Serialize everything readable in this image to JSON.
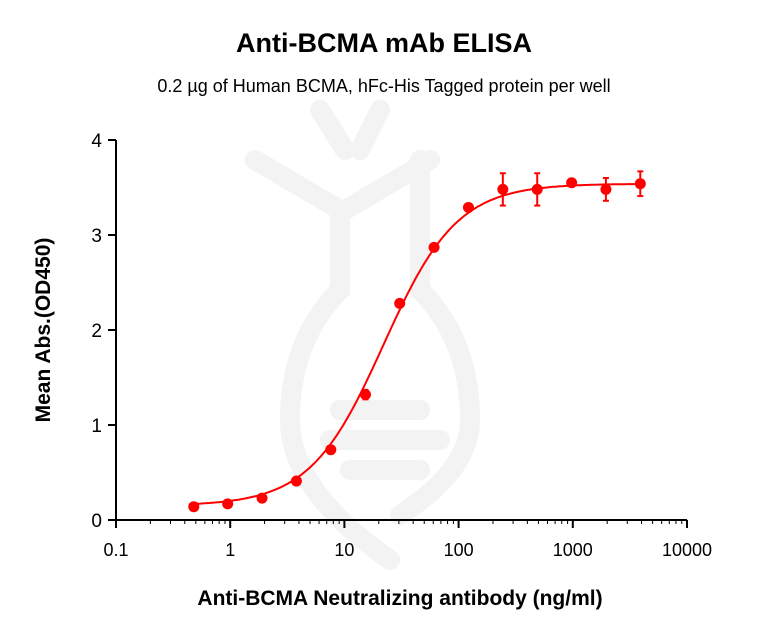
{
  "chart_data": {
    "type": "scatter",
    "title": "Anti-BCMA mAb ELISA",
    "subtitle": "0.2 µg of Human BCMA, hFc-His Tagged protein per well",
    "xlabel": "Anti-BCMA Neutralizing antibody (ng/ml)",
    "ylabel": "Mean Abs.(OD450)",
    "x_scale": "log",
    "xlim": [
      0.1,
      10000
    ],
    "ylim": [
      0,
      4
    ],
    "x_ticks": [
      "0.1",
      "1",
      "10",
      "100",
      "1000",
      "10000"
    ],
    "y_ticks": [
      "0",
      "1",
      "2",
      "3",
      "4"
    ],
    "grid": false,
    "color": "#ff0000",
    "fit": "4PL sigmoid",
    "series": [
      {
        "x": [
          0.48,
          0.95,
          1.9,
          3.8,
          7.6,
          15.3,
          30.5,
          61,
          122,
          244,
          488,
          977,
          1950,
          3900
        ],
        "y": [
          0.14,
          0.17,
          0.23,
          0.41,
          0.74,
          1.32,
          2.28,
          2.87,
          3.29,
          3.48,
          3.48,
          3.55,
          3.48,
          3.54
        ],
        "error": [
          0,
          0,
          0,
          0,
          0,
          0.05,
          0,
          0,
          0,
          0.17,
          0.17,
          0,
          0.12,
          0.13
        ]
      }
    ]
  }
}
